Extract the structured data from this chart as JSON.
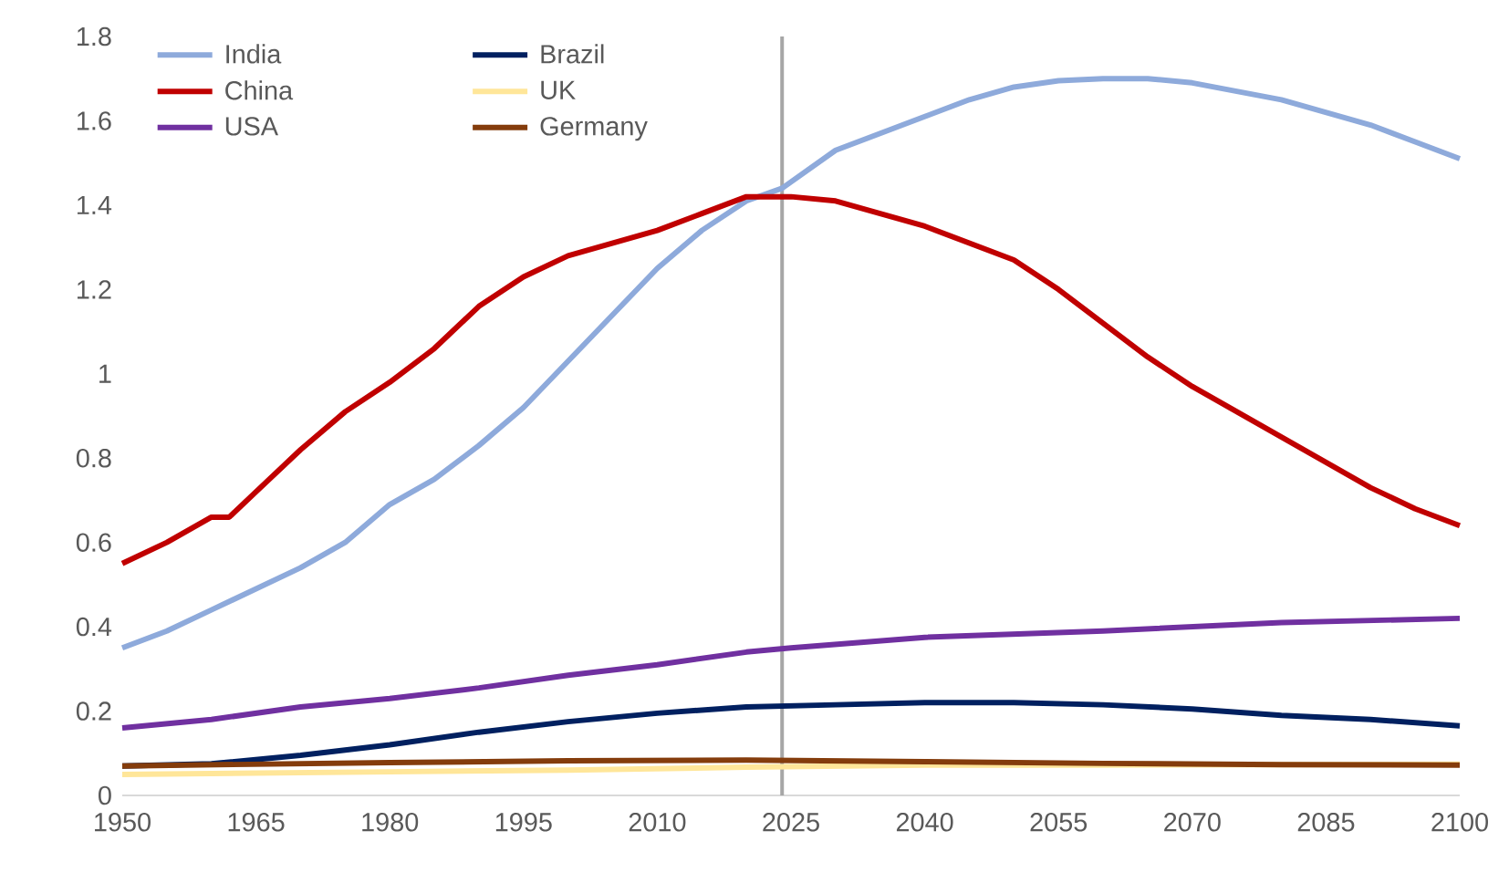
{
  "chart_data": {
    "type": "line",
    "xlim": [
      1950,
      2100
    ],
    "xticks": [
      1950,
      1965,
      1980,
      1995,
      2010,
      2025,
      2040,
      2055,
      2070,
      2085,
      2100
    ],
    "ylim": [
      0,
      1.8
    ],
    "yticks": [
      0,
      0.2,
      0.4,
      0.6,
      0.8,
      1,
      1.2,
      1.4,
      1.6,
      1.8
    ],
    "grid": false,
    "legend": "top left",
    "marker": "none",
    "line_style": "solid",
    "ref_lines": [
      {
        "axis": "x",
        "value": 2024,
        "color": "#a6a6a6"
      }
    ],
    "series": [
      {
        "name": "India",
        "color": "#8eaadb",
        "x": [
          1950,
          1955,
          1960,
          1965,
          1970,
          1975,
          1980,
          1985,
          1990,
          1995,
          2000,
          2005,
          2010,
          2015,
          2020,
          2024,
          2030,
          2035,
          2040,
          2045,
          2050,
          2055,
          2060,
          2065,
          2070,
          2075,
          2080,
          2085,
          2090,
          2095,
          2100
        ],
        "values": [
          0.35,
          0.39,
          0.44,
          0.49,
          0.54,
          0.6,
          0.69,
          0.75,
          0.83,
          0.92,
          1.03,
          1.14,
          1.25,
          1.34,
          1.41,
          1.44,
          1.53,
          1.57,
          1.61,
          1.65,
          1.68,
          1.695,
          1.7,
          1.7,
          1.69,
          1.67,
          1.65,
          1.62,
          1.59,
          1.55,
          1.51
        ]
      },
      {
        "name": "Brazil",
        "color": "#002060",
        "x": [
          1950,
          1960,
          1970,
          1980,
          1990,
          2000,
          2010,
          2020,
          2030,
          2040,
          2050,
          2060,
          2070,
          2080,
          2090,
          2100
        ],
        "values": [
          0.07,
          0.075,
          0.095,
          0.12,
          0.15,
          0.175,
          0.195,
          0.21,
          0.215,
          0.22,
          0.22,
          0.215,
          0.205,
          0.19,
          0.18,
          0.165
        ]
      },
      {
        "name": "China",
        "color": "#c00000",
        "x": [
          1950,
          1955,
          1960,
          1962,
          1965,
          1970,
          1975,
          1980,
          1985,
          1990,
          1995,
          2000,
          2005,
          2010,
          2015,
          2020,
          2025,
          2030,
          2035,
          2040,
          2045,
          2050,
          2055,
          2060,
          2065,
          2070,
          2075,
          2080,
          2085,
          2090,
          2095,
          2100
        ],
        "values": [
          0.55,
          0.6,
          0.66,
          0.66,
          0.72,
          0.82,
          0.91,
          0.98,
          1.06,
          1.16,
          1.23,
          1.28,
          1.31,
          1.34,
          1.38,
          1.42,
          1.42,
          1.41,
          1.38,
          1.35,
          1.31,
          1.27,
          1.2,
          1.12,
          1.04,
          0.97,
          0.91,
          0.85,
          0.79,
          0.73,
          0.68,
          0.64
        ]
      },
      {
        "name": "UK",
        "color": "#ffe699",
        "x": [
          1950,
          1980,
          2000,
          2020,
          2040,
          2060,
          2080,
          2100
        ],
        "values": [
          0.05,
          0.056,
          0.06,
          0.067,
          0.072,
          0.072,
          0.073,
          0.074
        ]
      },
      {
        "name": "USA",
        "color": "#7030a0",
        "x": [
          1950,
          1960,
          1970,
          1980,
          1990,
          2000,
          2010,
          2020,
          2025,
          2040,
          2060,
          2080,
          2100
        ],
        "values": [
          0.16,
          0.18,
          0.21,
          0.23,
          0.255,
          0.285,
          0.31,
          0.34,
          0.35,
          0.375,
          0.39,
          0.41,
          0.42
        ]
      },
      {
        "name": "Germany",
        "color": "#843c0c",
        "x": [
          1950,
          1980,
          2000,
          2020,
          2040,
          2060,
          2080,
          2100
        ],
        "values": [
          0.07,
          0.078,
          0.082,
          0.084,
          0.08,
          0.076,
          0.073,
          0.072
        ]
      }
    ]
  }
}
